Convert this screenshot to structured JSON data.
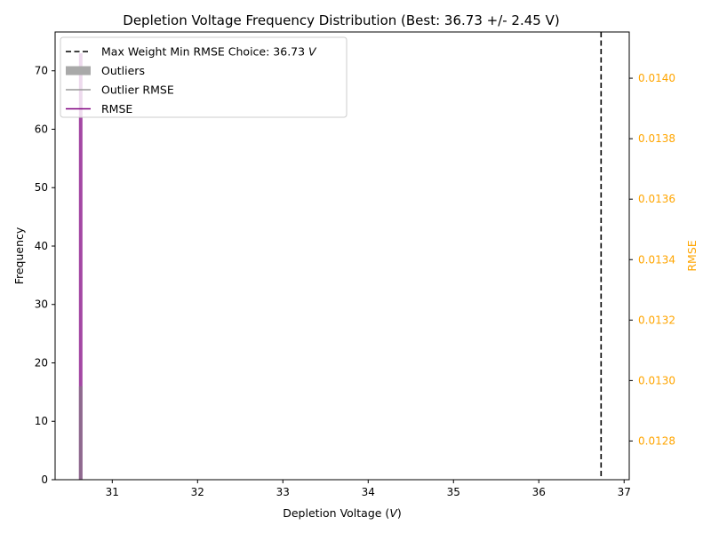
{
  "chart_data": {
    "type": "histogram",
    "title": "Depletion Voltage Frequency Distribution (Best: 36.73 +/- 2.45 V)",
    "xlabel": "Depletion Voltage (V)",
    "xlabel_main": "Depletion Voltage (",
    "xlabel_unit": "V",
    "xlabel_end": ")",
    "ylabel": "Frequency",
    "y2label": "RMSE",
    "xlim": [
      30.33,
      37.06
    ],
    "ylim": [
      0,
      76.65
    ],
    "y2lim": [
      0.012672,
      0.014153
    ],
    "xticks": [
      31,
      32,
      33,
      34,
      35,
      36,
      37
    ],
    "yticks": [
      0,
      10,
      20,
      30,
      40,
      50,
      60,
      70
    ],
    "y2ticks": [
      0.0128,
      0.013,
      0.0132,
      0.0134,
      0.0136,
      0.0138,
      0.014
    ],
    "y2tick_labels": [
      "0.0128",
      "0.0130",
      "0.0132",
      "0.0134",
      "0.0136",
      "0.0138",
      "0.0140"
    ],
    "grid": false,
    "legend_position": "top-left",
    "bars": [
      {
        "series": "RMSE",
        "x": 30.63,
        "value": 73,
        "color": "#800080",
        "opacity": 0.72
      },
      {
        "series": "Outliers",
        "x": 30.63,
        "value": 16,
        "color": "#808080",
        "opacity": 0.6
      }
    ],
    "vline": {
      "x": 36.73,
      "label": "Max Weight Min RMSE Choice: 36.73",
      "label_unit": "V"
    },
    "legend": [
      {
        "label": "Max Weight Min RMSE Choice: 36.73",
        "unit": "V",
        "style": "dashed-line",
        "color": "#000000"
      },
      {
        "label": "Outliers",
        "style": "patch",
        "color": "#a9a9a9"
      },
      {
        "label": "Outlier RMSE",
        "style": "line",
        "color": "#999999"
      },
      {
        "label": "RMSE",
        "style": "line",
        "color": "#800080"
      }
    ],
    "colors": {
      "rmse_axis": "#FFA500",
      "rmse": "#800080",
      "outlier": "#808080"
    }
  }
}
